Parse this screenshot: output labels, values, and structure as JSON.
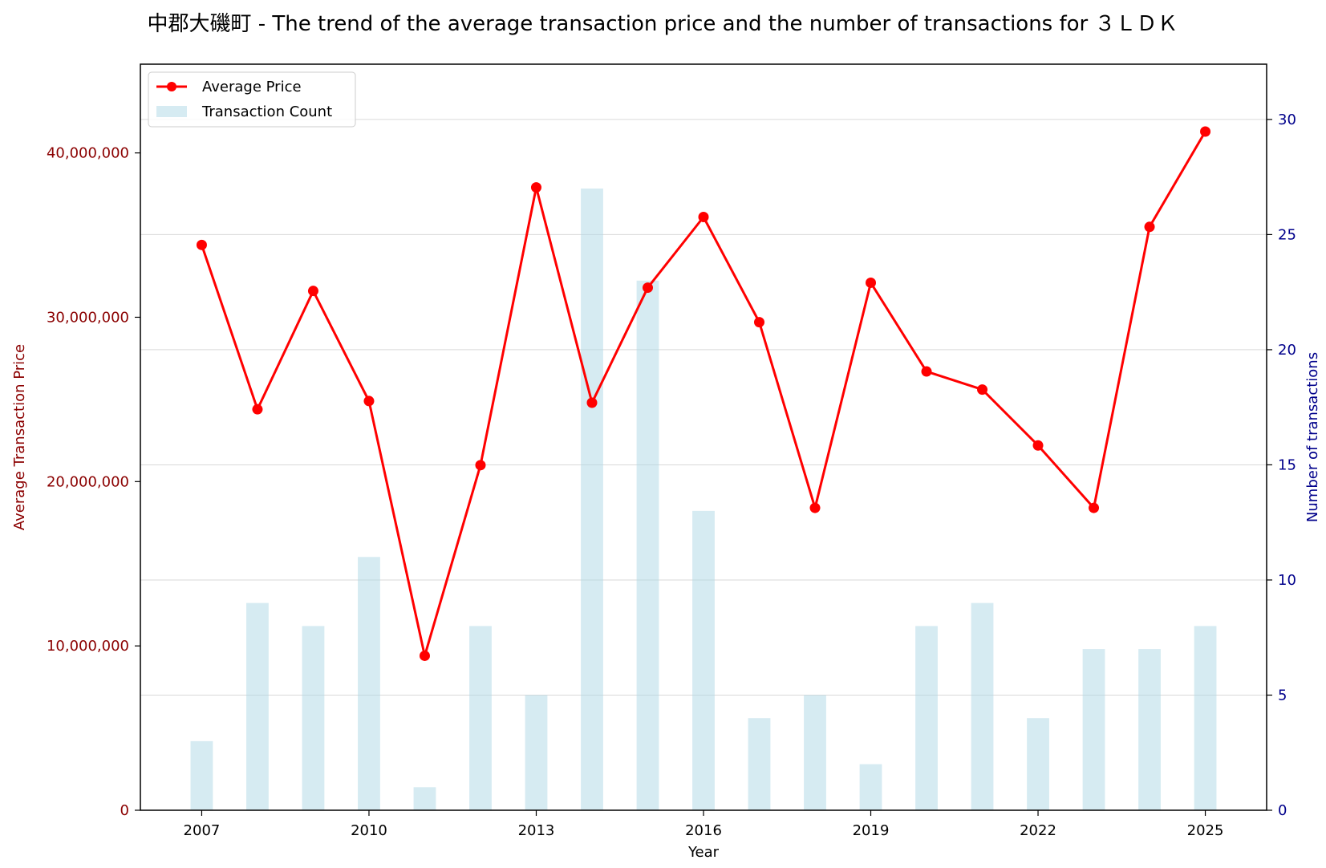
{
  "chart_data": {
    "type": "bar+line",
    "title": "中郡大磯町 - The trend of the average transaction price and the number of transactions for ３ＬＤＫ",
    "xlabel": "Year",
    "ylabel_left": "Average Transaction Price",
    "ylabel_right": "Number of transactions",
    "x": [
      2007,
      2008,
      2009,
      2010,
      2011,
      2012,
      2013,
      2014,
      2015,
      2016,
      2017,
      2018,
      2019,
      2020,
      2021,
      2022,
      2023,
      2024,
      2025
    ],
    "x_ticks": [
      2007,
      2010,
      2013,
      2016,
      2019,
      2022,
      2025
    ],
    "xlim": [
      2005.9,
      2026.1
    ],
    "series": [
      {
        "name": "Average Price",
        "kind": "line",
        "axis": "left",
        "color": "#ff0000",
        "values": [
          34400000,
          24400000,
          31600000,
          24900000,
          9400000,
          21000000,
          37900000,
          24800000,
          31800000,
          36100000,
          29700000,
          18400000,
          32100000,
          26700000,
          25600000,
          22200000,
          18400000,
          35500000,
          41300000
        ]
      },
      {
        "name": "Transaction Count",
        "kind": "bar",
        "axis": "right",
        "color": "#add8e6",
        "values": [
          3,
          9,
          8,
          11,
          1,
          8,
          5,
          27,
          23,
          13,
          4,
          5,
          2,
          8,
          9,
          4,
          7,
          7,
          8
        ]
      }
    ],
    "ylim_left": [
      0,
      45400000
    ],
    "yticks_left": [
      0,
      10000000,
      20000000,
      30000000,
      40000000
    ],
    "ytick_labels_left": [
      "0",
      "10,000,000",
      "20,000,000",
      "30,000,000",
      "40,000,000"
    ],
    "ylim_right": [
      0,
      32.4
    ],
    "yticks_right": [
      0,
      5,
      10,
      15,
      20,
      25,
      30
    ],
    "ytick_labels_right": [
      "0",
      "5",
      "10",
      "15",
      "20",
      "25",
      "30"
    ],
    "x_tick_labels": [
      "2007",
      "2010",
      "2013",
      "2016",
      "2019",
      "2022",
      "2025"
    ],
    "left_axis_color": "#8b0000",
    "right_axis_color": "#00008b",
    "grid": true,
    "legend_position": "top-left"
  }
}
